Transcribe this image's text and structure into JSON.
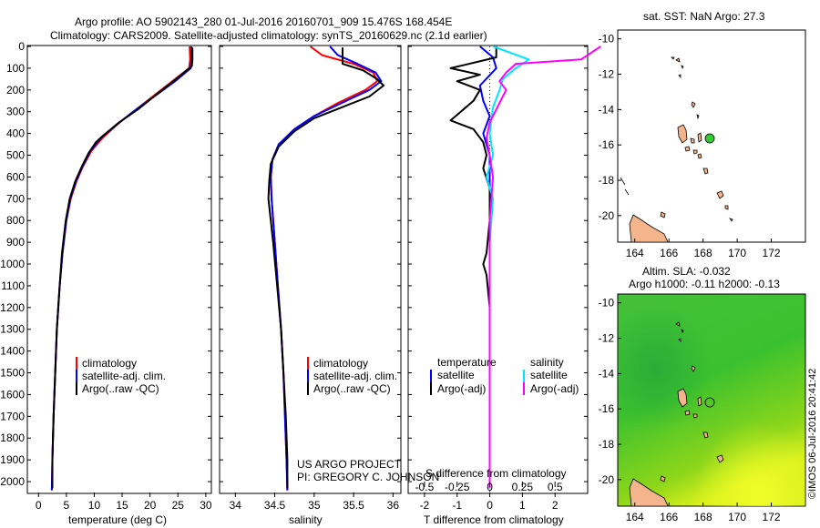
{
  "header": {
    "line1": "Argo profile: AO 5902143_280 01-Jul-2016 20160701_909 15.476S 168.454E",
    "line2": "Climatology: CARS2009. Satellite-adjusted climatology: synTS_20160629.nc (2.1d earlier)"
  },
  "colors": {
    "clim": "#ff0000",
    "sat": "#0000ff",
    "argo": "#000000",
    "sat_sal": "#00e5ff",
    "argo_sal": "#ff00ff",
    "land": "#f4b48c"
  },
  "chart_data": [
    {
      "type": "line",
      "name": "temperature",
      "xlabel": "temperature (deg C)",
      "ylabel": "",
      "xlim": [
        -2,
        31
      ],
      "ylim": [
        2050,
        0
      ],
      "xticks": [
        0,
        5,
        10,
        15,
        20,
        25,
        30
      ],
      "yticks": [
        0,
        100,
        200,
        300,
        400,
        500,
        600,
        700,
        800,
        900,
        1000,
        1100,
        1200,
        1300,
        1400,
        1500,
        1600,
        1700,
        1800,
        1900,
        2000
      ],
      "legend": [
        "climatology",
        "satellite-adj. clim.",
        "Argo(..raw -QC)"
      ],
      "legend_position": "bottom-center",
      "series": [
        {
          "name": "climatology",
          "color": "clim",
          "points": [
            [
              27.1,
              0
            ],
            [
              27.2,
              60
            ],
            [
              27.0,
              100
            ],
            [
              24.0,
              160
            ],
            [
              21.0,
              220
            ],
            [
              17.5,
              290
            ],
            [
              14.5,
              350
            ],
            [
              11.5,
              420
            ],
            [
              9.5,
              480
            ],
            [
              8.0,
              550
            ],
            [
              6.8,
              620
            ],
            [
              5.8,
              700
            ],
            [
              5.0,
              800
            ],
            [
              4.3,
              950
            ],
            [
              3.8,
              1100
            ],
            [
              3.3,
              1300
            ],
            [
              3.0,
              1500
            ],
            [
              2.7,
              1700
            ],
            [
              2.5,
              1900
            ],
            [
              2.4,
              2040
            ]
          ]
        },
        {
          "name": "satellite-adj. clim.",
          "color": "sat",
          "points": [
            [
              27.4,
              0
            ],
            [
              27.4,
              60
            ],
            [
              27.3,
              100
            ],
            [
              24.5,
              160
            ],
            [
              21.3,
              220
            ],
            [
              17.5,
              290
            ],
            [
              14.0,
              360
            ],
            [
              11.2,
              420
            ],
            [
              9.3,
              480
            ],
            [
              7.9,
              550
            ],
            [
              6.7,
              620
            ],
            [
              5.7,
              700
            ],
            [
              5.0,
              800
            ],
            [
              4.3,
              950
            ],
            [
              3.8,
              1100
            ],
            [
              3.3,
              1300
            ],
            [
              3.0,
              1500
            ],
            [
              2.7,
              1700
            ],
            [
              2.5,
              1900
            ],
            [
              2.4,
              2040
            ]
          ]
        },
        {
          "name": "Argo(..raw -QC)",
          "color": "argo",
          "points": [
            [
              27.6,
              5
            ],
            [
              27.6,
              60
            ],
            [
              27.5,
              90
            ],
            [
              24.2,
              160
            ],
            [
              21.2,
              220
            ],
            [
              17.8,
              290
            ],
            [
              14.4,
              350
            ],
            [
              11.6,
              410
            ],
            [
              10.3,
              440
            ],
            [
              9.0,
              490
            ],
            [
              7.8,
              550
            ],
            [
              6.6,
              620
            ],
            [
              5.6,
              700
            ],
            [
              4.9,
              800
            ],
            [
              4.2,
              950
            ],
            [
              3.8,
              1100
            ],
            [
              3.3,
              1300
            ],
            [
              3.0,
              1500
            ],
            [
              2.7,
              1700
            ],
            [
              2.5,
              1900
            ],
            [
              2.5,
              2030
            ]
          ]
        }
      ]
    },
    {
      "type": "line",
      "name": "salinity",
      "xlabel": "salinity",
      "ylabel": "",
      "xlim": [
        33.8,
        36.1
      ],
      "ylim": [
        2050,
        0
      ],
      "xticks": [
        34,
        34.5,
        35,
        35.5,
        36
      ],
      "legend": [
        "climatology",
        "satellite-adj. clim.",
        "Argo(..raw -QC)"
      ],
      "legend_position": "bottom-right",
      "series": [
        {
          "name": "climatology",
          "color": "clim",
          "points": [
            [
              34.95,
              0
            ],
            [
              35.1,
              40
            ],
            [
              35.5,
              80
            ],
            [
              35.75,
              120
            ],
            [
              35.8,
              160
            ],
            [
              35.65,
              200
            ],
            [
              35.3,
              260
            ],
            [
              35.0,
              320
            ],
            [
              34.75,
              380
            ],
            [
              34.55,
              450
            ],
            [
              34.47,
              520
            ],
            [
              34.45,
              600
            ],
            [
              34.46,
              700
            ],
            [
              34.5,
              900
            ],
            [
              34.54,
              1100
            ],
            [
              34.58,
              1300
            ],
            [
              34.61,
              1500
            ],
            [
              34.63,
              1700
            ],
            [
              34.65,
              1900
            ],
            [
              34.66,
              2040
            ]
          ]
        },
        {
          "name": "satellite-adj. clim.",
          "color": "sat",
          "points": [
            [
              35.2,
              0
            ],
            [
              35.3,
              40
            ],
            [
              35.55,
              80
            ],
            [
              35.78,
              120
            ],
            [
              35.85,
              160
            ],
            [
              35.7,
              200
            ],
            [
              35.35,
              260
            ],
            [
              35.0,
              320
            ],
            [
              34.75,
              380
            ],
            [
              34.55,
              450
            ],
            [
              34.47,
              520
            ],
            [
              34.45,
              600
            ],
            [
              34.46,
              700
            ],
            [
              34.5,
              900
            ],
            [
              34.54,
              1100
            ],
            [
              34.58,
              1300
            ],
            [
              34.61,
              1500
            ],
            [
              34.63,
              1700
            ],
            [
              34.65,
              1900
            ],
            [
              34.66,
              2040
            ]
          ]
        },
        {
          "name": "Argo(..raw -QC)",
          "color": "argo",
          "points": [
            [
              35.36,
              5
            ],
            [
              35.36,
              80
            ],
            [
              35.62,
              110
            ],
            [
              35.8,
              150
            ],
            [
              35.88,
              180
            ],
            [
              35.7,
              230
            ],
            [
              35.35,
              280
            ],
            [
              35.0,
              330
            ],
            [
              34.75,
              390
            ],
            [
              34.55,
              460
            ],
            [
              34.45,
              540
            ],
            [
              34.43,
              620
            ],
            [
              34.42,
              700
            ],
            [
              34.48,
              900
            ],
            [
              34.53,
              1100
            ],
            [
              34.58,
              1300
            ],
            [
              34.61,
              1500
            ],
            [
              34.64,
              1700
            ],
            [
              34.66,
              1900
            ],
            [
              34.66,
              2030
            ]
          ]
        }
      ]
    },
    {
      "type": "line",
      "name": "differences",
      "xlabel_top": "S difference from climatology",
      "xlabel_bottom": "T difference from climatology",
      "xlim": [
        -2.5,
        3.0
      ],
      "ylim": [
        2050,
        0
      ],
      "xticks": [
        -2,
        -1,
        0,
        1,
        2
      ],
      "xticks_top": [
        -0.5,
        -0.25,
        0,
        0.25,
        0.5
      ],
      "legend_titles": [
        "temperature",
        "salinity"
      ],
      "legend": [
        "satellite",
        "Argo(-adj)",
        "satellite",
        "Argo(-adj)"
      ],
      "legend_position": "bottom-center",
      "series": [
        {
          "name": "temperature satellite",
          "color": "sat",
          "points": [
            [
              -0.3,
              0
            ],
            [
              0.1,
              50
            ],
            [
              0.2,
              100
            ],
            [
              -0.3,
              180
            ],
            [
              -0.2,
              250
            ],
            [
              0.0,
              320
            ],
            [
              -0.2,
              400
            ],
            [
              0.0,
              500
            ],
            [
              0.0,
              600
            ],
            [
              0.0,
              800
            ],
            [
              0.0,
              2030
            ]
          ]
        },
        {
          "name": "temperature Argo(-adj)",
          "color": "argo",
          "points": [
            [
              0.2,
              0
            ],
            [
              0.2,
              50
            ],
            [
              -1.2,
              100
            ],
            [
              -0.3,
              130
            ],
            [
              -1.0,
              160
            ],
            [
              -0.3,
              200
            ],
            [
              -0.5,
              250
            ],
            [
              -1.2,
              340
            ],
            [
              -0.5,
              380
            ],
            [
              -0.2,
              440
            ],
            [
              -0.1,
              500
            ],
            [
              -0.2,
              560
            ],
            [
              0.0,
              650
            ],
            [
              0.0,
              800
            ],
            [
              -0.1,
              950
            ],
            [
              -0.2,
              1000
            ],
            [
              -0.1,
              1050
            ],
            [
              0.0,
              1200
            ],
            [
              0.0,
              2030
            ]
          ]
        },
        {
          "name": "salinity satellite",
          "color": "sat_sal",
          "points": [
            [
              0.1,
              0
            ],
            [
              1.2,
              60
            ],
            [
              0.8,
              100
            ],
            [
              0.4,
              150
            ],
            [
              0.3,
              200
            ],
            [
              0.1,
              280
            ],
            [
              0.0,
              400
            ],
            [
              0.1,
              500
            ],
            [
              -0.1,
              600
            ],
            [
              0.1,
              700
            ],
            [
              0.0,
              900
            ],
            [
              0.0,
              2030
            ]
          ]
        },
        {
          "name": "salinity Argo(-adj)",
          "color": "argo_sal",
          "points": [
            [
              3.4,
              0
            ],
            [
              2.8,
              60
            ],
            [
              0.8,
              80
            ],
            [
              0.5,
              120
            ],
            [
              0.3,
              160
            ],
            [
              0.5,
              200
            ],
            [
              0.3,
              260
            ],
            [
              0.0,
              350
            ],
            [
              -0.1,
              420
            ],
            [
              0.0,
              500
            ],
            [
              0.1,
              600
            ],
            [
              0.0,
              800
            ],
            [
              0.0,
              2030
            ]
          ]
        }
      ]
    },
    {
      "type": "map",
      "name": "sat SST",
      "title": "sat. SST: NaN Argo: 27.3",
      "xlim": [
        163,
        174
      ],
      "ylim": [
        -21.5,
        -9.5
      ],
      "xticks": [
        164,
        166,
        168,
        170,
        172
      ],
      "yticks": [
        -10,
        -12,
        -14,
        -16,
        -18,
        -20
      ],
      "argo_position": [
        168.454,
        -15.476
      ]
    },
    {
      "type": "map",
      "name": "altimetry SLA",
      "title": "Altim. SLA: -0.032",
      "subtitle": "Argo h1000: -0.11 h2000: -0.13",
      "xlim": [
        163,
        174
      ],
      "ylim": [
        -21.5,
        -9.5
      ],
      "xticks": [
        164,
        166,
        168,
        170,
        172
      ],
      "yticks": [
        -10,
        -12,
        -14,
        -16,
        -18,
        -20
      ],
      "argo_position": [
        168.454,
        -15.476
      ]
    }
  ],
  "labels": {
    "legend_temp": [
      "climatology",
      "satellite-adj. clim.",
      "Argo(..raw -QC)"
    ],
    "legend_sal": [
      "climatology",
      "satellite-adj. clim.",
      "Argo(..raw -QC)"
    ],
    "legend_diff_titles": [
      "temperature",
      "salinity"
    ],
    "legend_diff": [
      "satellite",
      "Argo(-adj)",
      "satellite",
      "Argo(-adj)"
    ],
    "project": "US ARGO PROJECT",
    "pi": "PI: GREGORY C. JOHNSON",
    "imos": "©IMOS 06-Jul-2016 20:41:42"
  }
}
